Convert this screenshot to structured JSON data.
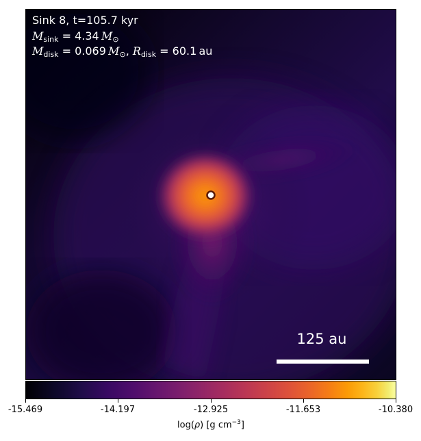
{
  "annotation": {
    "title": "Sink 8, t=105.7 kyr",
    "mass_symbol": "M",
    "mass_sub": "sink",
    "mass_value": "4.34",
    "mass_unit_symbol": "M",
    "mass_unit_sub": "⊙",
    "disk_mass_symbol": "M",
    "disk_mass_sub": "disk",
    "disk_mass_value": "0.069",
    "disk_mass_unit_symbol": "M",
    "disk_mass_unit_sub": "⊙",
    "disk_radius_symbol": "R",
    "disk_radius_sub": "disk",
    "disk_radius_value": "60.1",
    "disk_radius_unit": "au"
  },
  "scalebar": {
    "label": "125 au"
  },
  "colorbar": {
    "colormap": "inferno",
    "min": -15.469,
    "max": -10.38,
    "tick_labels": [
      "-15.469",
      "-14.197",
      "-12.925",
      "-11.653",
      "-10.380"
    ],
    "label_prefix": "log(",
    "label_symbol": "ρ",
    "label_suffix": ") [g cm",
    "label_exp": "−3",
    "label_close": "]"
  },
  "colors": {
    "background_low": "#000004",
    "sink_marker_fill": "#ffffff",
    "sink_marker_ring": "#5a1a08",
    "core_glow": "#f07a2a"
  },
  "icons": {
    "sink_marker": "sink-particle-circle"
  }
}
